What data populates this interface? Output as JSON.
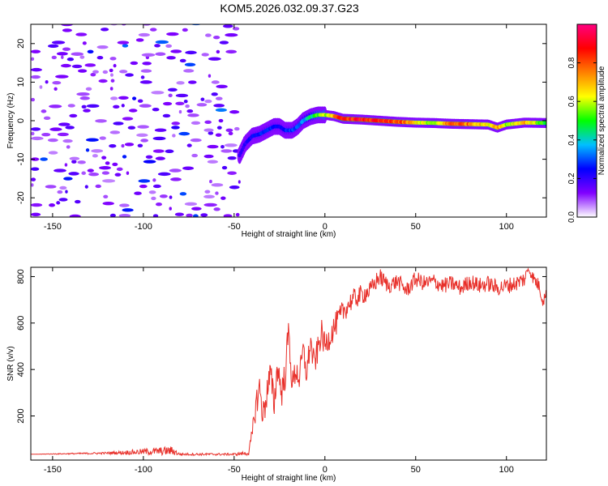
{
  "title": "KOM5.2026.032.09.37.G23",
  "chart_data": [
    {
      "type": "heatmap",
      "name": "spectrogram",
      "xlabel": "Height of straight line (km)",
      "ylabel": "Frequency (Hz)",
      "xlim": [
        -162,
        122
      ],
      "ylim": [
        -25,
        25
      ],
      "x_ticks": [
        -150,
        -100,
        -50,
        0,
        50,
        100
      ],
      "x_tick_labels": [
        "-150",
        "-100",
        "-50",
        "0",
        "50",
        "100"
      ],
      "y_ticks": [
        -20,
        -10,
        0,
        10,
        20
      ],
      "y_tick_labels": [
        "-20",
        "-10",
        "0",
        "10",
        "20"
      ],
      "noise_region_x": [
        -162,
        -47
      ],
      "signal_trace": {
        "x": [
          -47,
          -44,
          -40,
          -36,
          -32,
          -28,
          -25,
          -22,
          -18,
          -15,
          -12,
          -8,
          -4,
          0,
          5,
          10,
          20,
          30,
          40,
          50,
          60,
          70,
          80,
          90,
          95,
          100,
          110,
          122
        ],
        "y": [
          -9,
          -6,
          -4,
          -3.5,
          -2.5,
          -1.5,
          -1.5,
          -2.5,
          -2.5,
          -1.5,
          0,
          1,
          1.5,
          1.5,
          1.2,
          0.5,
          0.3,
          0,
          -0.3,
          -0.5,
          -0.6,
          -0.8,
          -0.9,
          -1,
          -1.8,
          -1,
          -0.5,
          -0.6
        ],
        "amplitude": [
          0.2,
          0.22,
          0.25,
          0.28,
          0.3,
          0.27,
          0.25,
          0.28,
          0.3,
          0.32,
          0.35,
          0.45,
          0.55,
          0.6,
          0.75,
          0.9,
          0.92,
          0.88,
          0.85,
          0.7,
          0.55,
          0.85,
          0.8,
          0.65,
          0.8,
          0.6,
          0.75,
          0.5
        ]
      },
      "colorbar": {
        "label": "Normalized spectral amplitude",
        "range": [
          0,
          1
        ],
        "ticks": [
          0,
          0.2,
          0.4,
          0.6,
          0.8
        ],
        "tick_labels": [
          "0.0",
          "0.2",
          "0.4",
          "0.6",
          "0.8"
        ],
        "colors": [
          "#ffffff",
          "#8000ff",
          "#0000ff",
          "#00c0ff",
          "#00ff00",
          "#ffff00",
          "#ff8000",
          "#ff0000",
          "#ff0080"
        ]
      }
    },
    {
      "type": "line",
      "name": "snr",
      "xlabel": "Height of straight line (km)",
      "ylabel": "SNR (v/v)",
      "xlim": [
        -162,
        122
      ],
      "ylim": [
        10,
        840
      ],
      "x_ticks": [
        -150,
        -100,
        -50,
        0,
        50,
        100
      ],
      "x_tick_labels": [
        "-150",
        "-100",
        "-50",
        "0",
        "50",
        "100"
      ],
      "y_ticks": [
        200,
        400,
        600,
        800
      ],
      "y_tick_labels": [
        "200",
        "400",
        "600",
        "800"
      ],
      "series": [
        {
          "name": "SNR",
          "color": "#e8302a",
          "x": [
            -162,
            -120,
            -84,
            -80,
            -50,
            -42,
            -40,
            -38,
            -36,
            -34,
            -32,
            -30,
            -28,
            -26,
            -24,
            -22,
            -20,
            -18,
            -16,
            -14,
            -12,
            -10,
            -8,
            -6,
            -4,
            -2,
            0,
            5,
            10,
            15,
            20,
            25,
            30,
            35,
            40,
            45,
            50,
            55,
            60,
            65,
            70,
            75,
            80,
            85,
            90,
            95,
            100,
            105,
            110,
            112,
            115,
            118,
            120,
            122
          ],
          "y": [
            35,
            40,
            50,
            35,
            35,
            40,
            120,
            250,
            320,
            200,
            300,
            380,
            250,
            420,
            300,
            370,
            570,
            330,
            400,
            360,
            480,
            380,
            520,
            420,
            480,
            560,
            500,
            580,
            650,
            700,
            720,
            740,
            800,
            760,
            780,
            740,
            790,
            770,
            780,
            760,
            770,
            750,
            780,
            760,
            770,
            750,
            760,
            770,
            790,
            835,
            790,
            760,
            700,
            720
          ],
          "envelope": [
            0,
            5,
            20,
            5,
            5,
            10,
            40,
            60,
            70,
            70,
            70,
            70,
            70,
            70,
            70,
            70,
            60,
            60,
            60,
            60,
            60,
            60,
            60,
            60,
            60,
            60,
            55,
            55,
            50,
            45,
            45,
            40,
            40,
            35,
            35,
            35,
            35,
            35,
            35,
            35,
            35,
            35,
            35,
            35,
            35,
            35,
            35,
            35,
            35,
            10,
            30,
            30,
            30,
            30
          ]
        }
      ]
    }
  ]
}
